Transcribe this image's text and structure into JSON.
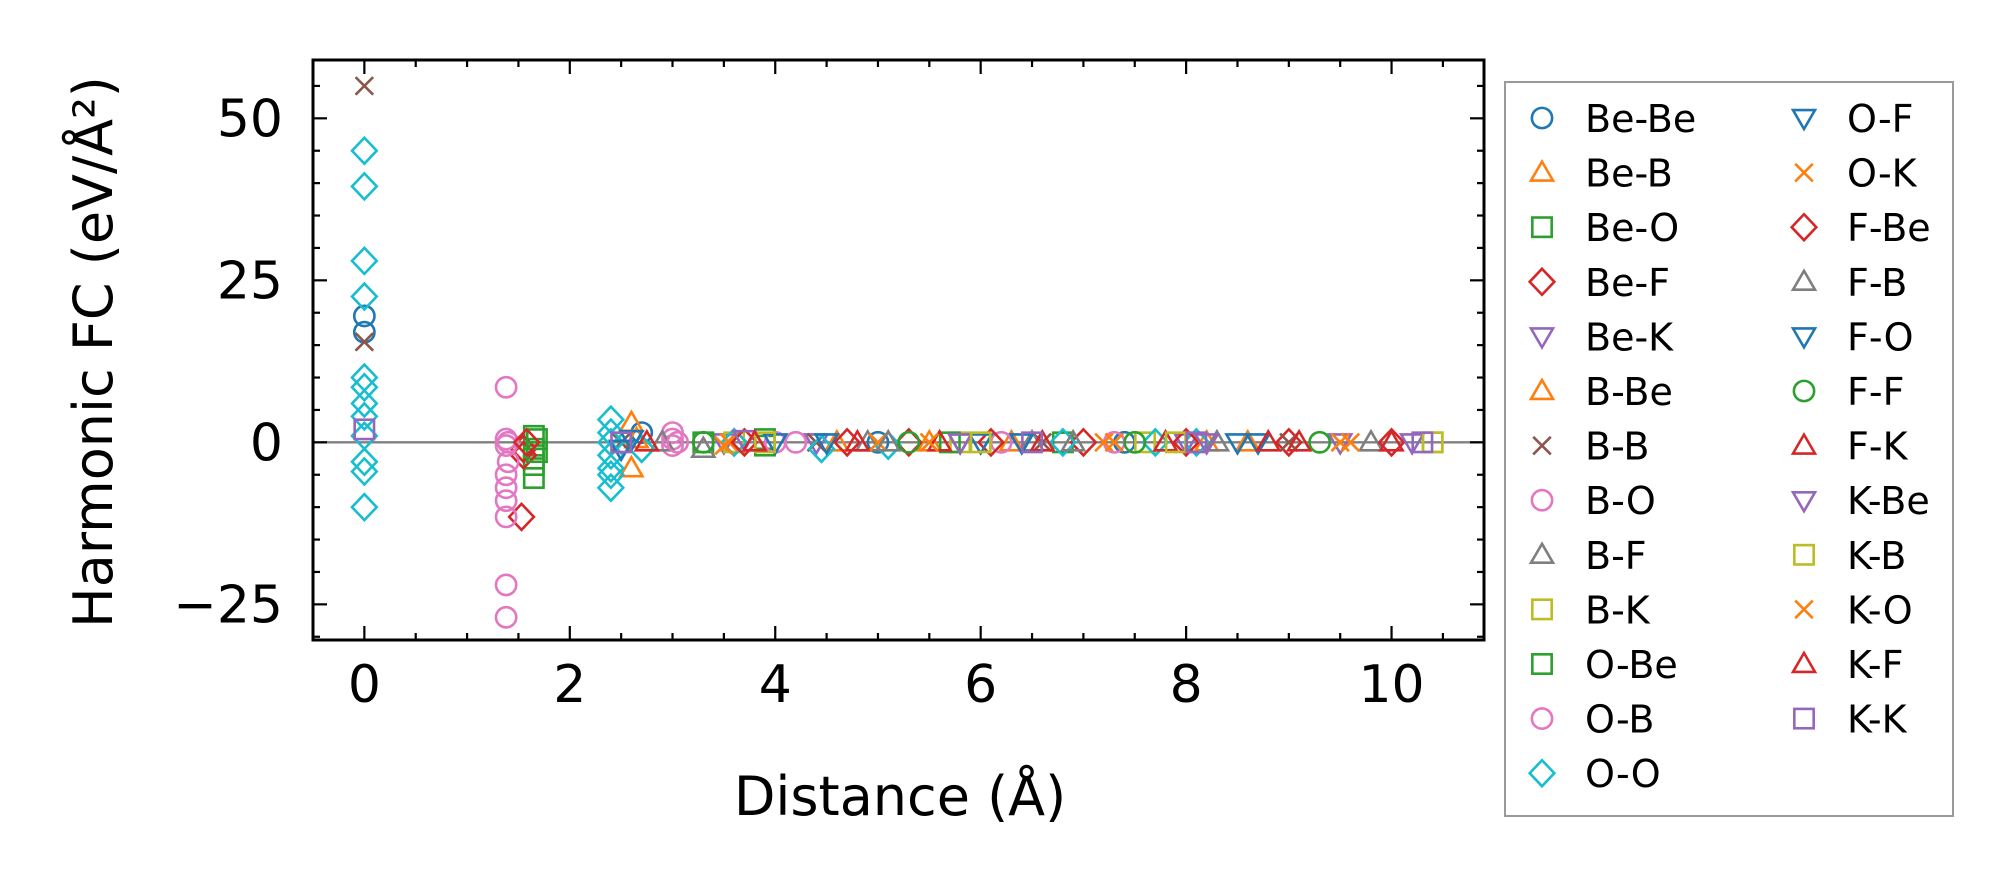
{
  "chart_data": {
    "type": "scatter",
    "xlabel": "Distance (Å)",
    "ylabel": "Harmonic FC (eV/Å²)",
    "xlim": [
      -0.5,
      10.9
    ],
    "ylim": [
      -30.5,
      59
    ],
    "x_ticks": [
      0,
      2,
      4,
      6,
      8,
      10
    ],
    "y_ticks": [
      -25,
      0,
      25,
      50
    ],
    "x_tick_labels": [
      "0",
      "2",
      "4",
      "6",
      "8",
      "10"
    ],
    "y_tick_labels": [
      "−25",
      "0",
      "25",
      "50"
    ],
    "zero_line": true,
    "grid": false,
    "legend_position": "outside-right",
    "series": [
      {
        "name": "Be-Be",
        "marker": "circle",
        "color": "#1f77b4",
        "points": [
          [
            0,
            19.5
          ],
          [
            0,
            17
          ],
          [
            2.7,
            1.5
          ],
          [
            5.0,
            0
          ],
          [
            7.4,
            0
          ]
        ]
      },
      {
        "name": "Be-B",
        "marker": "triangle-up",
        "color": "#ff7f0e",
        "points": [
          [
            2.6,
            -4
          ],
          [
            2.6,
            3
          ],
          [
            3.8,
            0
          ],
          [
            5.5,
            0
          ],
          [
            8.2,
            0
          ]
        ]
      },
      {
        "name": "Be-O",
        "marker": "square",
        "color": "#2ca02c",
        "points": [
          [
            1.65,
            1
          ],
          [
            1.65,
            -1
          ],
          [
            1.65,
            -2.5
          ],
          [
            1.65,
            -3.5
          ],
          [
            1.65,
            -5.5
          ],
          [
            3.9,
            0.5
          ],
          [
            3.9,
            -0.5
          ],
          [
            6.8,
            0
          ]
        ]
      },
      {
        "name": "Be-F",
        "marker": "diamond",
        "color": "#d62728",
        "points": [
          [
            1.55,
            -1
          ],
          [
            1.55,
            -2
          ],
          [
            1.53,
            -11.5
          ],
          [
            3.6,
            0
          ],
          [
            5.3,
            0
          ],
          [
            7.0,
            0
          ],
          [
            9.0,
            0
          ]
        ]
      },
      {
        "name": "Be-K",
        "marker": "triangle-down",
        "color": "#9467bd",
        "points": [
          [
            3.5,
            0
          ],
          [
            4.4,
            0
          ],
          [
            5.8,
            0
          ],
          [
            8.0,
            0
          ],
          [
            9.5,
            0
          ]
        ]
      },
      {
        "name": "B-Be",
        "marker": "triangle-up",
        "color": "#ff7f0e",
        "points": [
          [
            2.65,
            0.5
          ],
          [
            4.6,
            0
          ],
          [
            6.3,
            0
          ],
          [
            8.6,
            0
          ]
        ]
      },
      {
        "name": "B-B",
        "marker": "x",
        "color": "#8c564b",
        "points": [
          [
            0,
            55
          ],
          [
            0,
            15.5
          ],
          [
            2.5,
            0
          ],
          [
            4.4,
            0
          ],
          [
            6.6,
            0
          ],
          [
            9.0,
            0
          ]
        ]
      },
      {
        "name": "B-O",
        "marker": "circle",
        "color": "#e377c2",
        "points": [
          [
            1.38,
            8.5
          ],
          [
            1.38,
            0.5
          ],
          [
            1.38,
            -0.5
          ],
          [
            1.38,
            -5
          ],
          [
            1.38,
            -7
          ],
          [
            1.38,
            -9
          ],
          [
            1.38,
            -11.5
          ],
          [
            1.38,
            -22
          ],
          [
            1.38,
            -27
          ],
          [
            3.0,
            1.5
          ],
          [
            3.0,
            0.5
          ],
          [
            3.0,
            -0.5
          ],
          [
            4.0,
            0
          ],
          [
            6.2,
            0
          ],
          [
            7.3,
            0
          ]
        ]
      },
      {
        "name": "B-F",
        "marker": "triangle-up",
        "color": "#7f7f7f",
        "points": [
          [
            2.9,
            0
          ],
          [
            4.9,
            0
          ],
          [
            6.5,
            0
          ],
          [
            9.8,
            0
          ]
        ]
      },
      {
        "name": "B-K",
        "marker": "square",
        "color": "#bcbd22",
        "points": [
          [
            3.6,
            0
          ],
          [
            5.8,
            0
          ],
          [
            7.6,
            0
          ],
          [
            10.4,
            0
          ]
        ]
      },
      {
        "name": "O-Be",
        "marker": "square",
        "color": "#2ca02c",
        "points": [
          [
            1.68,
            0.5
          ],
          [
            1.68,
            -1.5
          ],
          [
            3.3,
            0
          ],
          [
            5.7,
            0
          ]
        ]
      },
      {
        "name": "O-B",
        "marker": "circle",
        "color": "#e377c2",
        "points": [
          [
            1.4,
            0
          ],
          [
            1.4,
            -3
          ],
          [
            3.05,
            0
          ],
          [
            4.2,
            0
          ]
        ]
      },
      {
        "name": "O-O",
        "marker": "diamond",
        "color": "#17becf",
        "points": [
          [
            0,
            45
          ],
          [
            0,
            39.5
          ],
          [
            0,
            28
          ],
          [
            0,
            22.5
          ],
          [
            0,
            10
          ],
          [
            0,
            8.5
          ],
          [
            0,
            6
          ],
          [
            0,
            4
          ],
          [
            0,
            1
          ],
          [
            0,
            -3
          ],
          [
            0,
            -4.5
          ],
          [
            0,
            -10
          ],
          [
            2.4,
            3.5
          ],
          [
            2.4,
            1.5
          ],
          [
            2.4,
            0
          ],
          [
            2.4,
            -2
          ],
          [
            2.4,
            -4
          ],
          [
            2.4,
            -5
          ],
          [
            2.4,
            -7
          ],
          [
            2.7,
            -1
          ],
          [
            3.6,
            0
          ],
          [
            4.45,
            -1
          ],
          [
            5.1,
            -0.5
          ],
          [
            6.8,
            0
          ],
          [
            7.7,
            0
          ],
          [
            8.1,
            0
          ]
        ]
      },
      {
        "name": "O-F",
        "marker": "triangle-down",
        "color": "#1f77b4",
        "points": [
          [
            2.5,
            -1
          ],
          [
            4.5,
            0
          ],
          [
            6.4,
            0
          ],
          [
            8.5,
            0
          ]
        ]
      },
      {
        "name": "O-K",
        "marker": "x",
        "color": "#ff7f0e",
        "points": [
          [
            3.55,
            0
          ],
          [
            5.0,
            0
          ],
          [
            7.2,
            0
          ],
          [
            9.5,
            0
          ]
        ]
      },
      {
        "name": "F-Be",
        "marker": "diamond",
        "color": "#d62728",
        "points": [
          [
            1.58,
            0
          ],
          [
            3.7,
            0
          ],
          [
            4.7,
            0
          ],
          [
            6.1,
            0
          ],
          [
            8.0,
            0
          ],
          [
            10.0,
            0
          ]
        ]
      },
      {
        "name": "F-B",
        "marker": "triangle-up",
        "color": "#7f7f7f",
        "points": [
          [
            3.3,
            -1
          ],
          [
            5.1,
            0
          ],
          [
            6.9,
            0
          ],
          [
            8.3,
            0
          ]
        ]
      },
      {
        "name": "F-O",
        "marker": "triangle-down",
        "color": "#1f77b4",
        "points": [
          [
            2.6,
            0.5
          ],
          [
            4.0,
            0
          ],
          [
            6.0,
            0
          ],
          [
            8.7,
            0
          ]
        ]
      },
      {
        "name": "F-F",
        "marker": "circle",
        "color": "#2ca02c",
        "points": [
          [
            3.3,
            0
          ],
          [
            5.3,
            0
          ],
          [
            7.5,
            0
          ],
          [
            9.3,
            0
          ]
        ]
      },
      {
        "name": "F-K",
        "marker": "triangle-up",
        "color": "#d62728",
        "points": [
          [
            2.75,
            0
          ],
          [
            4.8,
            0
          ],
          [
            5.6,
            0
          ],
          [
            7.8,
            0
          ],
          [
            9.1,
            0
          ]
        ]
      },
      {
        "name": "K-Be",
        "marker": "triangle-down",
        "color": "#9467bd",
        "points": [
          [
            3.7,
            0.5
          ],
          [
            5.8,
            0
          ],
          [
            8.2,
            0
          ],
          [
            10.2,
            0
          ]
        ]
      },
      {
        "name": "K-B",
        "marker": "square",
        "color": "#bcbd22",
        "points": [
          [
            3.9,
            0
          ],
          [
            6.0,
            0
          ],
          [
            7.9,
            0
          ],
          [
            10.4,
            0
          ]
        ]
      },
      {
        "name": "K-O",
        "marker": "x",
        "color": "#ff7f0e",
        "points": [
          [
            3.5,
            -0.5
          ],
          [
            5.5,
            0
          ],
          [
            7.3,
            0
          ],
          [
            9.6,
            0
          ]
        ]
      },
      {
        "name": "K-F",
        "marker": "triangle-up",
        "color": "#d62728",
        "points": [
          [
            3.8,
            0
          ],
          [
            6.6,
            0
          ],
          [
            8.8,
            0
          ],
          [
            10.0,
            0
          ]
        ]
      },
      {
        "name": "K-K",
        "marker": "square",
        "color": "#9467bd",
        "points": [
          [
            0,
            2
          ],
          [
            2.5,
            0
          ],
          [
            6.5,
            0
          ],
          [
            8.1,
            0
          ],
          [
            10.3,
            0
          ]
        ]
      }
    ]
  }
}
